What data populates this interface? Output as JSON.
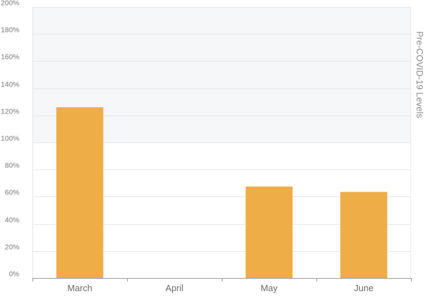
{
  "chart_data": {
    "type": "bar",
    "categories": [
      "March",
      "April",
      "May",
      "June"
    ],
    "values": [
      126,
      0,
      67.5,
      63.5
    ],
    "y_tick_labels": [
      "0%",
      "20%",
      "40%",
      "60%",
      "80%",
      "100%",
      "120%",
      "140%",
      "160%",
      "180%",
      "200%"
    ],
    "ylim": [
      0,
      200
    ],
    "y_unit": "%",
    "band": {
      "label": "Pre-COVID-19 Levels",
      "range": [
        100,
        200
      ]
    },
    "grid": true,
    "legend": "none",
    "title": "",
    "xlabel": "",
    "ylabel": ""
  },
  "colors": {
    "bar": "#efad48",
    "band": "#f6f7f9",
    "grid": "#e6e6e6",
    "axis": "#9a9a9a",
    "tick_text": "#777777",
    "category_text": "#6a6a6a",
    "side_label_text": "#8a8a8a"
  }
}
